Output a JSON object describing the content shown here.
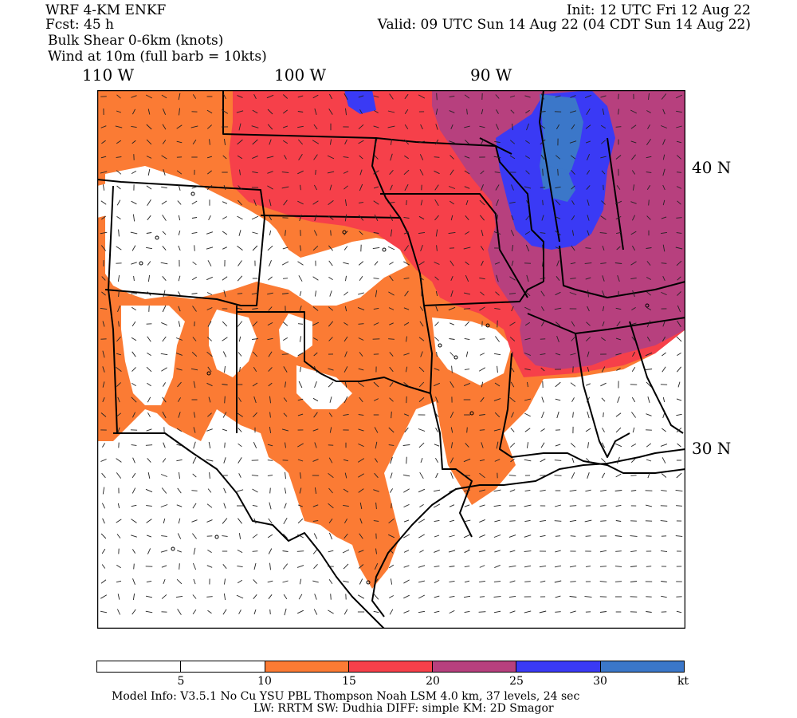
{
  "header": {
    "model_title": "WRF 4-KM ENKF",
    "forecast_hour": "Fcst:   45 h",
    "field_primary": "Bulk Shear 0-6km (knots)",
    "field_secondary": "Wind at 10m (full barb = 10kts)",
    "init_time": "Init: 12 UTC Fri 12 Aug 22",
    "valid_time": "Valid: 09 UTC Sun 14 Aug 22 (04 CDT Sun 14 Aug 22)"
  },
  "axes": {
    "longitudes": [
      "110 W",
      "100 W",
      "90 W"
    ],
    "latitudes": [
      "40 N",
      "30 N"
    ]
  },
  "colorbar": {
    "labels": [
      "5",
      "10",
      "15",
      "20",
      "25",
      "30"
    ],
    "unit": "kt",
    "colors": [
      "#ffffff",
      "#ffffff",
      "#fb7b34",
      "#f6404a",
      "#b7407e",
      "#3a3af5",
      "#3b77c9"
    ]
  },
  "footer": {
    "line1": "Model Info: V3.5.1    No Cu    YSU PBL   Thompson      Noah LSM  4.0 km,  37 levels,    24 sec",
    "line2": "LW: RRTM SW: Dudhia   DIFF: simple KM: 2D Smagor"
  }
}
